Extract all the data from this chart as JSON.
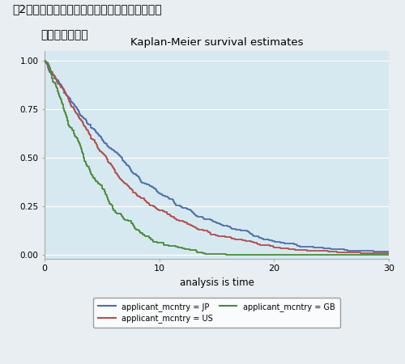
{
  "title": "Kaplan-Meier survival estimates",
  "xlabel": "analysis is time",
  "xlim": [
    0,
    30
  ],
  "ylim": [
    -0.02,
    1.05
  ],
  "yticks": [
    0.0,
    0.25,
    0.5,
    0.75,
    1.0
  ],
  "ytick_labels": [
    "0.00",
    "0.25",
    "0.50",
    "0.75",
    "1.00"
  ],
  "xticks": [
    0,
    10,
    20,
    30
  ],
  "plot_bg_color": "#d6e8f0",
  "fig_bg_color": "#e8eef2",
  "line_JP_color": "#4f6faa",
  "line_US_color": "#b05050",
  "line_GB_color": "#4a8a3a",
  "grid_color": "#ffffff",
  "legend_labels": [
    "applicant_mcntry = JP",
    "applicant_mcntry = US",
    "applicant_mcntry = GB"
  ],
  "fig_title_line1": "図2　論文の創出から最初の物質特許による利用",
  "fig_title_line2": "までの引用ラグ",
  "jp_rate": 8.5,
  "jp_shape": 1.15,
  "us_rate": 7.5,
  "us_shape": 1.15,
  "gb_rate": 4.8,
  "gb_shape": 1.25
}
